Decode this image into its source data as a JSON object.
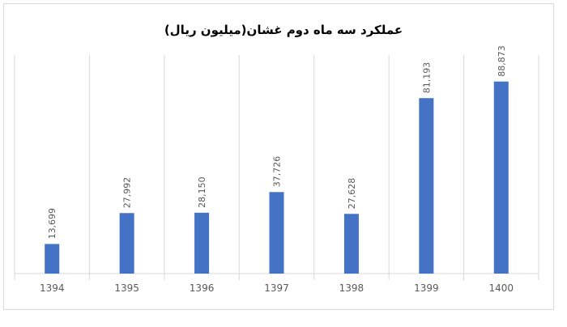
{
  "chart_data": {
    "type": "bar",
    "title": "عملکرد سه ماه دوم غشان(میلیون ریال)",
    "categories": [
      "1394",
      "1395",
      "1396",
      "1397",
      "1398",
      "1399",
      "1400"
    ],
    "values": [
      13699,
      27992,
      28150,
      37726,
      27628,
      81193,
      88873
    ],
    "value_labels": [
      "13,699",
      "27,992",
      "28,150",
      "37,726",
      "27,628",
      "81,193",
      "88,873"
    ],
    "color": "#4472c4",
    "ylim": [
      0,
      100000
    ]
  }
}
